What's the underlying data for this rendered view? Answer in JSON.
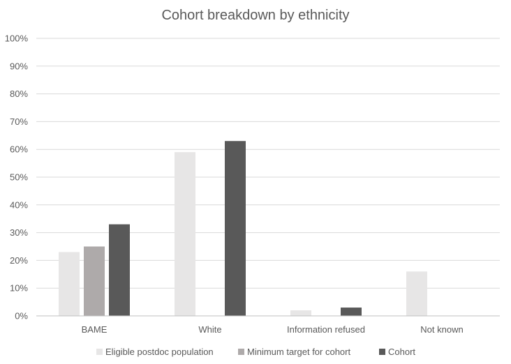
{
  "chart_data": {
    "type": "bar",
    "title": "Cohort breakdown by ethnicity",
    "categories": [
      "BAME",
      "White",
      "Information refused",
      "Not known"
    ],
    "series": [
      {
        "name": "Eligible postdoc population",
        "values": [
          23,
          59,
          2,
          16
        ],
        "color": "#e7e6e6"
      },
      {
        "name": "Minimum target for cohort",
        "values": [
          25,
          null,
          null,
          null
        ],
        "color": "#aeaaaa"
      },
      {
        "name": "Cohort",
        "values": [
          33,
          63,
          3,
          null
        ],
        "color": "#595959"
      }
    ],
    "y_ticks": [
      "0%",
      "10%",
      "20%",
      "30%",
      "40%",
      "50%",
      "60%",
      "70%",
      "80%",
      "90%",
      "100%"
    ],
    "ylim": [
      0,
      100
    ],
    "y_unit": "%",
    "grid": true,
    "legend_position": "bottom"
  }
}
